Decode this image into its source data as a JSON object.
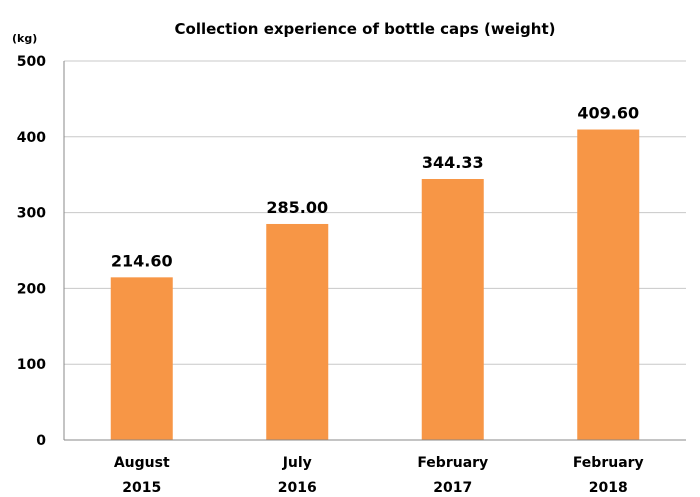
{
  "chart_data": {
    "type": "bar",
    "title": "Collection experience of bottle caps (weight)",
    "unit_label": "(kg)",
    "categories": [
      [
        "August",
        "2015"
      ],
      [
        "July",
        "2016"
      ],
      [
        "February",
        "2017"
      ],
      [
        "February",
        "2018"
      ]
    ],
    "values": [
      214.6,
      285.0,
      344.33,
      409.6
    ],
    "data_labels": [
      "214.60",
      "285.00",
      "344.33",
      "409.60"
    ],
    "yticks": [
      "0",
      "100",
      "200",
      "300",
      "400",
      "500"
    ],
    "ylim": [
      0,
      500
    ],
    "grid": true,
    "legend": "none",
    "bar_color": "#F79646"
  }
}
